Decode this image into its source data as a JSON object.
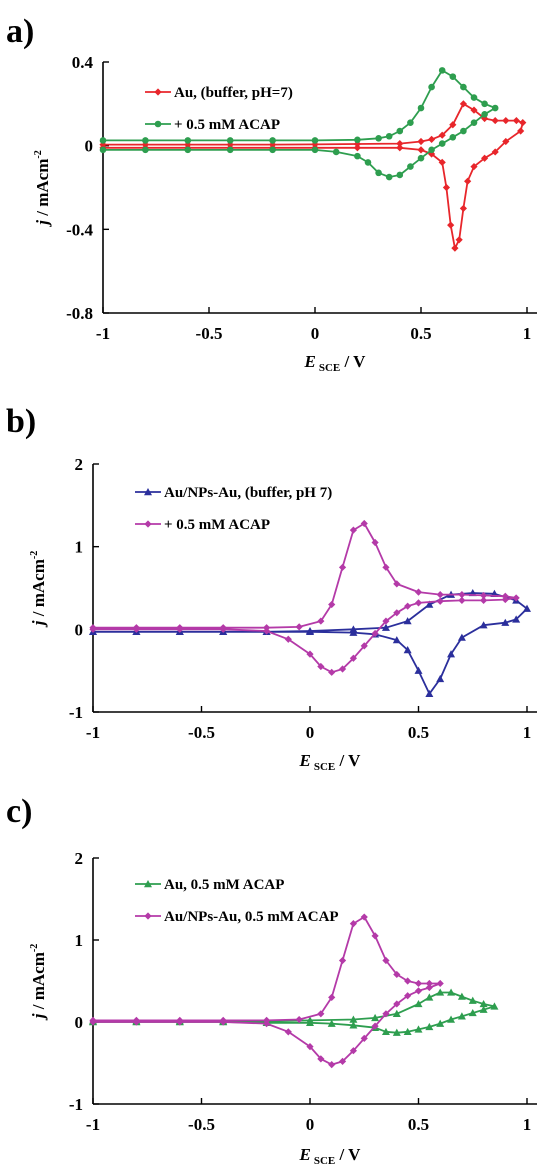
{
  "chart_data": [
    {
      "panel": "a)",
      "type": "line",
      "xlabel": "E",
      "xlabel_sub": "SCE",
      "xlabel_unit": " / V",
      "ylabel": "j / mAcm",
      "ylabel_sup": "-2",
      "xlim": [
        -1,
        1
      ],
      "ylim": [
        -0.8,
        0.4
      ],
      "x_ticks": [
        -1,
        -0.5,
        0,
        0.5,
        1
      ],
      "x_tick_labels": [
        "-1",
        "-0.5",
        "0",
        "0.5",
        "1"
      ],
      "y_ticks": [
        -0.8,
        -0.4,
        0,
        0.4
      ],
      "y_tick_labels": [
        "-0.8",
        "-0.4",
        "0",
        "0.4"
      ],
      "grid": false,
      "legend_position": "top-left",
      "series": [
        {
          "name": "Au, (buffer, pH=7)",
          "color": "#e8262b",
          "marker": "diamond",
          "x": [
            -1,
            -0.8,
            -0.6,
            -0.4,
            -0.2,
            0,
            0.2,
            0.4,
            0.5,
            0.55,
            0.6,
            0.65,
            0.7,
            0.75,
            0.8,
            0.85,
            0.9,
            0.95,
            0.98,
            0.97,
            0.9,
            0.85,
            0.8,
            0.75,
            0.72,
            0.7,
            0.68,
            0.66,
            0.64,
            0.62,
            0.6,
            0.55,
            0.5,
            0.4,
            0.2,
            0,
            -0.2,
            -0.4,
            -0.6,
            -0.8,
            -1
          ],
          "y": [
            0.005,
            0.005,
            0.005,
            0.005,
            0.005,
            0.006,
            0.008,
            0.01,
            0.02,
            0.03,
            0.05,
            0.1,
            0.2,
            0.17,
            0.13,
            0.12,
            0.12,
            0.12,
            0.11,
            0.07,
            0.02,
            -0.03,
            -0.06,
            -0.1,
            -0.17,
            -0.3,
            -0.45,
            -0.49,
            -0.38,
            -0.2,
            -0.08,
            -0.04,
            -0.02,
            -0.01,
            -0.01,
            -0.01,
            -0.01,
            -0.01,
            -0.01,
            -0.01,
            -0.01
          ]
        },
        {
          "name": "+ 0.5 mM ACAP",
          "color": "#2e9e4f",
          "marker": "circle",
          "x": [
            -1,
            -0.8,
            -0.6,
            -0.4,
            -0.2,
            0,
            0.2,
            0.3,
            0.35,
            0.4,
            0.45,
            0.5,
            0.55,
            0.6,
            0.65,
            0.7,
            0.75,
            0.8,
            0.85,
            0.8,
            0.75,
            0.7,
            0.65,
            0.6,
            0.55,
            0.5,
            0.45,
            0.4,
            0.35,
            0.3,
            0.25,
            0.2,
            0.1,
            0,
            -0.2,
            -0.4,
            -0.6,
            -0.8,
            -1
          ],
          "y": [
            0.025,
            0.025,
            0.025,
            0.025,
            0.025,
            0.025,
            0.028,
            0.035,
            0.045,
            0.07,
            0.11,
            0.18,
            0.28,
            0.36,
            0.33,
            0.28,
            0.23,
            0.2,
            0.18,
            0.15,
            0.11,
            0.07,
            0.04,
            0.01,
            -0.02,
            -0.06,
            -0.1,
            -0.14,
            -0.15,
            -0.13,
            -0.08,
            -0.05,
            -0.03,
            -0.02,
            -0.02,
            -0.02,
            -0.02,
            -0.02,
            -0.02
          ]
        }
      ]
    },
    {
      "panel": "b)",
      "type": "line",
      "xlabel": "E",
      "xlabel_sub": "SCE",
      "xlabel_unit": " / V",
      "ylabel": "j / mAcm",
      "ylabel_sup": "-2",
      "xlim": [
        -1,
        1
      ],
      "ylim": [
        -1,
        2
      ],
      "x_ticks": [
        -1,
        -0.5,
        0,
        0.5,
        1
      ],
      "x_tick_labels": [
        "-1",
        "-0.5",
        "0",
        "0.5",
        "1"
      ],
      "y_ticks": [
        -1,
        0,
        1,
        2
      ],
      "y_tick_labels": [
        "-1",
        "0",
        "1",
        "2"
      ],
      "grid": false,
      "legend_position": "top-left",
      "series": [
        {
          "name": "Au/NPs-Au, (buffer, pH 7)",
          "color": "#2b2f9c",
          "marker": "triangle",
          "x": [
            -1,
            -0.8,
            -0.6,
            -0.4,
            -0.2,
            0,
            0.2,
            0.35,
            0.45,
            0.55,
            0.65,
            0.75,
            0.85,
            0.95,
            1,
            0.95,
            0.9,
            0.8,
            0.7,
            0.65,
            0.6,
            0.55,
            0.5,
            0.45,
            0.4,
            0.3,
            0.2,
            0,
            -0.2,
            -0.4,
            -0.6,
            -0.8,
            -1
          ],
          "y": [
            -0.03,
            -0.03,
            -0.03,
            -0.03,
            -0.03,
            -0.02,
            0.0,
            0.02,
            0.1,
            0.3,
            0.42,
            0.44,
            0.43,
            0.35,
            0.25,
            0.12,
            0.08,
            0.05,
            -0.1,
            -0.3,
            -0.6,
            -0.78,
            -0.5,
            -0.25,
            -0.13,
            -0.06,
            -0.04,
            -0.03,
            -0.03,
            -0.03,
            -0.03,
            -0.03,
            -0.03
          ]
        },
        {
          "name": "+ 0.5 mM ACAP",
          "color": "#b43aa8",
          "marker": "diamond",
          "x": [
            -1,
            -0.8,
            -0.6,
            -0.4,
            -0.2,
            -0.05,
            0.05,
            0.1,
            0.15,
            0.2,
            0.25,
            0.3,
            0.35,
            0.4,
            0.5,
            0.6,
            0.7,
            0.8,
            0.9,
            0.95,
            0.9,
            0.8,
            0.7,
            0.6,
            0.5,
            0.45,
            0.4,
            0.35,
            0.3,
            0.25,
            0.2,
            0.15,
            0.1,
            0.05,
            0,
            -0.1,
            -0.2,
            -0.4,
            -0.6,
            -0.8,
            -1
          ],
          "y": [
            0.02,
            0.02,
            0.02,
            0.02,
            0.02,
            0.03,
            0.1,
            0.3,
            0.75,
            1.2,
            1.28,
            1.05,
            0.75,
            0.55,
            0.45,
            0.42,
            0.42,
            0.41,
            0.4,
            0.38,
            0.36,
            0.35,
            0.35,
            0.34,
            0.32,
            0.28,
            0.2,
            0.1,
            -0.05,
            -0.2,
            -0.35,
            -0.48,
            -0.52,
            -0.45,
            -0.3,
            -0.12,
            -0.02,
            -0.0,
            0.0,
            0.0,
            0.0
          ]
        }
      ]
    },
    {
      "panel": "c)",
      "type": "line",
      "xlabel": "E",
      "xlabel_sub": "SCE",
      "xlabel_unit": " / V",
      "ylabel": "j / mAcm",
      "ylabel_sup": "-2",
      "xlim": [
        -1,
        1
      ],
      "ylim": [
        -1,
        2
      ],
      "x_ticks": [
        -1,
        -0.5,
        0,
        0.5,
        1
      ],
      "x_tick_labels": [
        "-1",
        "-0.5",
        "0",
        "0.5",
        "1"
      ],
      "y_ticks": [
        -1,
        0,
        1,
        2
      ],
      "y_tick_labels": [
        "-1",
        "0",
        "1",
        "2"
      ],
      "grid": false,
      "legend_position": "top-left",
      "series": [
        {
          "name": "Au, 0.5 mM ACAP",
          "color": "#2e9e4f",
          "marker": "triangle",
          "x": [
            -1,
            -0.8,
            -0.6,
            -0.4,
            -0.2,
            0,
            0.2,
            0.3,
            0.4,
            0.5,
            0.55,
            0.6,
            0.65,
            0.7,
            0.75,
            0.8,
            0.85,
            0.8,
            0.75,
            0.7,
            0.65,
            0.6,
            0.55,
            0.5,
            0.45,
            0.4,
            0.35,
            0.3,
            0.2,
            0.1,
            0,
            -0.2,
            -0.4,
            -0.6,
            -0.8,
            -1
          ],
          "y": [
            0.01,
            0.01,
            0.01,
            0.01,
            0.01,
            0.02,
            0.03,
            0.05,
            0.1,
            0.22,
            0.3,
            0.36,
            0.36,
            0.31,
            0.26,
            0.22,
            0.19,
            0.15,
            0.11,
            0.07,
            0.03,
            -0.02,
            -0.06,
            -0.09,
            -0.12,
            -0.13,
            -0.12,
            -0.07,
            -0.04,
            -0.02,
            -0.01,
            -0.01,
            0.0,
            0.0,
            0.0,
            0.0
          ]
        },
        {
          "name": "Au/NPs-Au, 0.5 mM ACAP",
          "color": "#b43aa8",
          "marker": "diamond",
          "x": [
            -1,
            -0.8,
            -0.6,
            -0.4,
            -0.2,
            -0.05,
            0.05,
            0.1,
            0.15,
            0.2,
            0.25,
            0.3,
            0.35,
            0.4,
            0.45,
            0.5,
            0.55,
            0.6,
            0.55,
            0.5,
            0.45,
            0.4,
            0.35,
            0.3,
            0.25,
            0.2,
            0.15,
            0.1,
            0.05,
            0,
            -0.1,
            -0.2,
            -0.4,
            -0.6,
            -0.8,
            -1
          ],
          "y": [
            0.02,
            0.02,
            0.02,
            0.02,
            0.02,
            0.03,
            0.1,
            0.3,
            0.75,
            1.2,
            1.28,
            1.05,
            0.75,
            0.58,
            0.5,
            0.47,
            0.47,
            0.47,
            0.42,
            0.38,
            0.32,
            0.22,
            0.1,
            -0.05,
            -0.2,
            -0.35,
            -0.48,
            -0.52,
            -0.45,
            -0.3,
            -0.12,
            -0.02,
            0.0,
            0.0,
            0.0,
            0.0
          ]
        }
      ]
    }
  ]
}
